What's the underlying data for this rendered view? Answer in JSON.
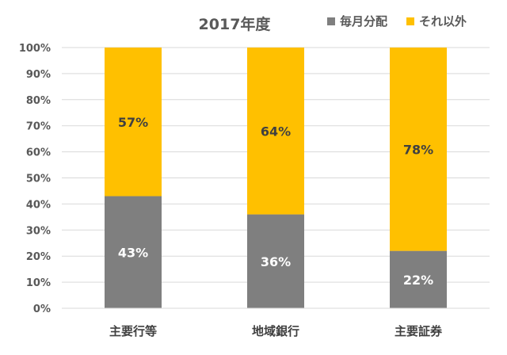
{
  "chart_data": {
    "type": "bar",
    "stacked": true,
    "title": "2017年度",
    "categories": [
      "主要行等",
      "地域銀行",
      "主要証券"
    ],
    "series": [
      {
        "name": "毎月分配",
        "values": [
          43,
          36,
          22
        ],
        "labels": [
          "43%",
          "36%",
          "22%"
        ],
        "color": "#7f7f7f",
        "label_color": "#ffffff"
      },
      {
        "name": "それ以外",
        "values": [
          57,
          64,
          78
        ],
        "labels": [
          "57%",
          "64%",
          "78%"
        ],
        "color": "#ffc000",
        "label_color": "#404040"
      }
    ],
    "yticks": [
      "0%",
      "10%",
      "20%",
      "30%",
      "40%",
      "50%",
      "60%",
      "70%",
      "80%",
      "90%",
      "100%"
    ],
    "ylim": [
      0,
      100
    ],
    "grid": true,
    "legend_position": "top-right"
  }
}
